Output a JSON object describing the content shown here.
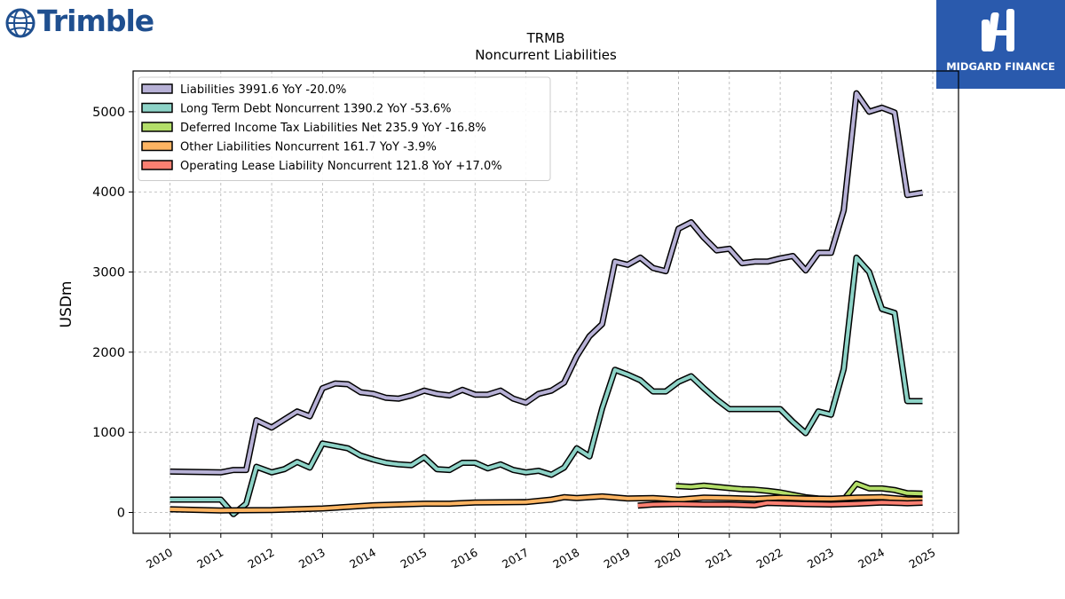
{
  "branding": {
    "company_logo_text": "Trimble",
    "sponsor_text": "MIDGARD FINANCE"
  },
  "chart_data": {
    "type": "line",
    "title": "TRMB",
    "subtitle": "Noncurrent  Liabilities",
    "xlabel": "",
    "ylabel": "USDm",
    "xlim": [
      2009.3,
      2025.5
    ],
    "ylim": [
      -250,
      5500
    ],
    "yticks": [
      0,
      1000,
      2000,
      3000,
      4000,
      5000
    ],
    "xticks": [
      "2010",
      "2011",
      "2012",
      "2013",
      "2014",
      "2015",
      "2016",
      "2017",
      "2018",
      "2019",
      "2020",
      "2021",
      "2022",
      "2023",
      "2024",
      "2025"
    ],
    "grid": true,
    "legend_position": "top-left",
    "series": [
      {
        "name": "Liabilities",
        "legend_label": "Liabilities  3991.6 YoY -20.0%",
        "color": "#b7b1d6",
        "points": [
          [
            2010.0,
            510
          ],
          [
            2011.0,
            500
          ],
          [
            2011.25,
            530
          ],
          [
            2011.5,
            530
          ],
          [
            2011.7,
            1150
          ],
          [
            2012.0,
            1060
          ],
          [
            2012.25,
            1160
          ],
          [
            2012.5,
            1260
          ],
          [
            2012.75,
            1200
          ],
          [
            2013.0,
            1550
          ],
          [
            2013.25,
            1610
          ],
          [
            2013.5,
            1600
          ],
          [
            2013.75,
            1500
          ],
          [
            2014.0,
            1480
          ],
          [
            2014.25,
            1430
          ],
          [
            2014.5,
            1420
          ],
          [
            2014.75,
            1460
          ],
          [
            2015.0,
            1520
          ],
          [
            2015.25,
            1480
          ],
          [
            2015.5,
            1460
          ],
          [
            2015.75,
            1530
          ],
          [
            2016.0,
            1470
          ],
          [
            2016.25,
            1470
          ],
          [
            2016.5,
            1520
          ],
          [
            2016.75,
            1420
          ],
          [
            2017.0,
            1370
          ],
          [
            2017.25,
            1480
          ],
          [
            2017.5,
            1520
          ],
          [
            2017.75,
            1620
          ],
          [
            2018.0,
            1950
          ],
          [
            2018.25,
            2200
          ],
          [
            2018.5,
            2350
          ],
          [
            2018.75,
            3130
          ],
          [
            2019.0,
            3090
          ],
          [
            2019.25,
            3180
          ],
          [
            2019.5,
            3050
          ],
          [
            2019.75,
            3010
          ],
          [
            2020.0,
            3540
          ],
          [
            2020.25,
            3620
          ],
          [
            2020.5,
            3430
          ],
          [
            2020.75,
            3270
          ],
          [
            2021.0,
            3290
          ],
          [
            2021.25,
            3110
          ],
          [
            2021.5,
            3130
          ],
          [
            2021.75,
            3130
          ],
          [
            2022.0,
            3170
          ],
          [
            2022.25,
            3200
          ],
          [
            2022.5,
            3020
          ],
          [
            2022.75,
            3240
          ],
          [
            2023.0,
            3240
          ],
          [
            2023.25,
            3770
          ],
          [
            2023.5,
            5230
          ],
          [
            2023.75,
            5000
          ],
          [
            2024.0,
            5050
          ],
          [
            2024.25,
            4990
          ],
          [
            2024.5,
            3960
          ],
          [
            2024.8,
            3990
          ]
        ]
      },
      {
        "name": "Long Term Debt Noncurrent",
        "legend_label": "Long Term Debt Noncurrent  1390.2 YoY -53.6%",
        "color": "#8dd3c7",
        "points": [
          [
            2010.0,
            160
          ],
          [
            2011.0,
            160
          ],
          [
            2011.25,
            -20
          ],
          [
            2011.5,
            110
          ],
          [
            2011.7,
            570
          ],
          [
            2012.0,
            500
          ],
          [
            2012.25,
            540
          ],
          [
            2012.5,
            630
          ],
          [
            2012.75,
            560
          ],
          [
            2013.0,
            860
          ],
          [
            2013.25,
            830
          ],
          [
            2013.5,
            800
          ],
          [
            2013.75,
            710
          ],
          [
            2014.0,
            660
          ],
          [
            2014.25,
            620
          ],
          [
            2014.5,
            600
          ],
          [
            2014.75,
            590
          ],
          [
            2015.0,
            690
          ],
          [
            2015.25,
            540
          ],
          [
            2015.5,
            530
          ],
          [
            2015.75,
            620
          ],
          [
            2016.0,
            620
          ],
          [
            2016.25,
            550
          ],
          [
            2016.5,
            600
          ],
          [
            2016.75,
            530
          ],
          [
            2017.0,
            500
          ],
          [
            2017.25,
            520
          ],
          [
            2017.5,
            470
          ],
          [
            2017.75,
            560
          ],
          [
            2018.0,
            800
          ],
          [
            2018.25,
            700
          ],
          [
            2018.5,
            1300
          ],
          [
            2018.75,
            1780
          ],
          [
            2019.0,
            1720
          ],
          [
            2019.25,
            1650
          ],
          [
            2019.5,
            1510
          ],
          [
            2019.75,
            1510
          ],
          [
            2020.0,
            1630
          ],
          [
            2020.25,
            1700
          ],
          [
            2020.5,
            1550
          ],
          [
            2020.75,
            1410
          ],
          [
            2021.0,
            1290
          ],
          [
            2021.25,
            1290
          ],
          [
            2021.5,
            1290
          ],
          [
            2021.75,
            1290
          ],
          [
            2022.0,
            1290
          ],
          [
            2022.25,
            1130
          ],
          [
            2022.5,
            990
          ],
          [
            2022.75,
            1260
          ],
          [
            2023.0,
            1220
          ],
          [
            2023.25,
            1790
          ],
          [
            2023.5,
            3180
          ],
          [
            2023.75,
            3000
          ],
          [
            2024.0,
            2540
          ],
          [
            2024.25,
            2490
          ],
          [
            2024.5,
            1390
          ],
          [
            2024.8,
            1390
          ]
        ]
      },
      {
        "name": "Deferred Income Tax Liabilities Net",
        "legend_label": "Deferred Income Tax Liabilities Net  235.9 YoY -16.8%",
        "color": "#b3de69",
        "points": [
          [
            2019.95,
            330
          ],
          [
            2020.25,
            320
          ],
          [
            2020.5,
            335
          ],
          [
            2020.75,
            320
          ],
          [
            2021.0,
            305
          ],
          [
            2021.25,
            290
          ],
          [
            2021.5,
            285
          ],
          [
            2021.75,
            270
          ],
          [
            2022.0,
            250
          ],
          [
            2022.25,
            220
          ],
          [
            2022.5,
            190
          ],
          [
            2022.75,
            175
          ],
          [
            2023.0,
            170
          ],
          [
            2023.25,
            160
          ],
          [
            2023.5,
            360
          ],
          [
            2023.75,
            300
          ],
          [
            2024.0,
            300
          ],
          [
            2024.25,
            280
          ],
          [
            2024.5,
            240
          ],
          [
            2024.8,
            236
          ]
        ]
      },
      {
        "name": "Other Liabilities Noncurrent",
        "legend_label": "Other Liabilities Noncurrent  161.7 YoY -3.9%",
        "color": "#fdb462",
        "points": [
          [
            2010.0,
            40
          ],
          [
            2011.0,
            25
          ],
          [
            2012.0,
            30
          ],
          [
            2013.0,
            50
          ],
          [
            2014.0,
            90
          ],
          [
            2015.0,
            110
          ],
          [
            2015.5,
            110
          ],
          [
            2016.0,
            125
          ],
          [
            2017.0,
            130
          ],
          [
            2017.5,
            160
          ],
          [
            2017.75,
            190
          ],
          [
            2018.0,
            180
          ],
          [
            2018.5,
            200
          ],
          [
            2019.0,
            175
          ],
          [
            2019.5,
            180
          ],
          [
            2020.0,
            160
          ],
          [
            2020.5,
            185
          ],
          [
            2021.0,
            180
          ],
          [
            2021.5,
            170
          ],
          [
            2022.0,
            185
          ],
          [
            2022.5,
            175
          ],
          [
            2023.0,
            170
          ],
          [
            2023.5,
            185
          ],
          [
            2024.0,
            190
          ],
          [
            2024.5,
            165
          ],
          [
            2024.8,
            162
          ]
        ]
      },
      {
        "name": "Operating Lease Liability Noncurrent",
        "legend_label": "Operating Lease Liability Noncurrent  121.8 YoY +17.0%",
        "color": "#fb8072",
        "points": [
          [
            2019.2,
            85
          ],
          [
            2019.5,
            100
          ],
          [
            2020.0,
            105
          ],
          [
            2020.5,
            100
          ],
          [
            2021.0,
            100
          ],
          [
            2021.5,
            90
          ],
          [
            2021.75,
            120
          ],
          [
            2022.0,
            115
          ],
          [
            2022.5,
            105
          ],
          [
            2023.0,
            100
          ],
          [
            2023.5,
            110
          ],
          [
            2024.0,
            125
          ],
          [
            2024.5,
            115
          ],
          [
            2024.8,
            122
          ]
        ]
      }
    ]
  }
}
